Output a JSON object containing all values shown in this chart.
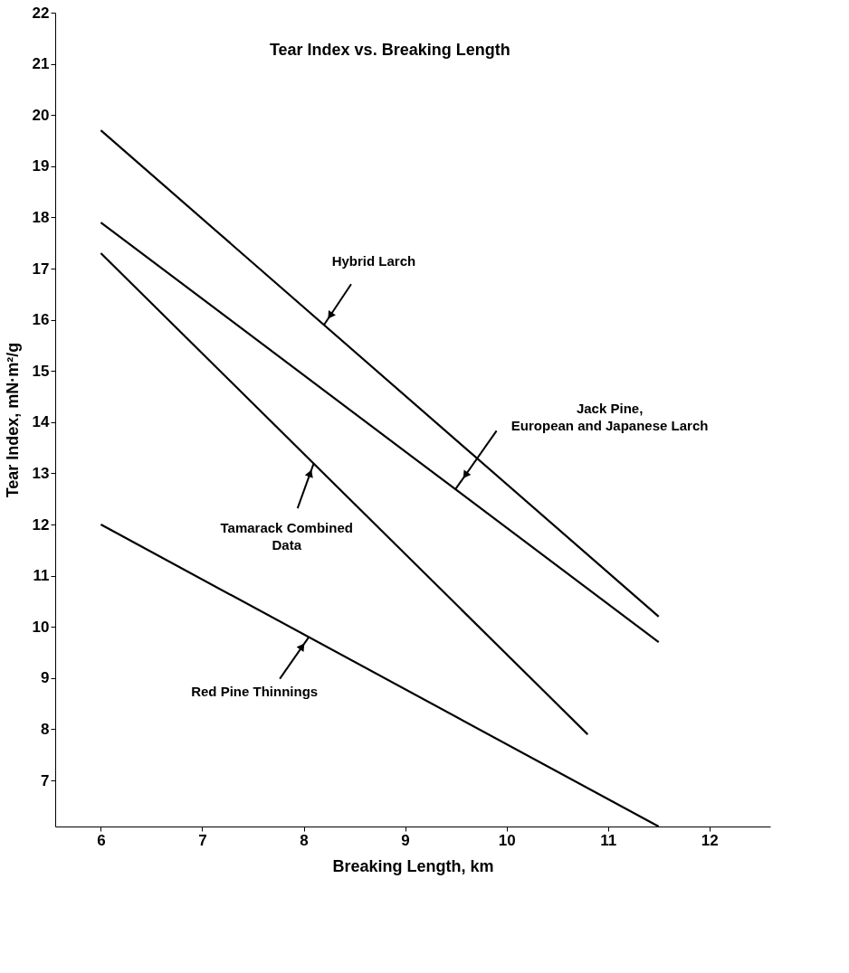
{
  "chart_data": {
    "type": "line",
    "title": "Tear Index vs. Breaking Length",
    "xlabel": "Breaking Length, km",
    "ylabel": "Tear Index, mN·m²/g",
    "xlim": [
      5.55,
      12.6
    ],
    "xticks": [
      6,
      7,
      8,
      9,
      10,
      11,
      12
    ],
    "ylim": [
      6.1,
      22
    ],
    "yticks": [
      7,
      8,
      9,
      10,
      11,
      12,
      13,
      14,
      15,
      16,
      17,
      18,
      19,
      20,
      21,
      22
    ],
    "grid": false,
    "legend": false,
    "marker": "none",
    "line_style": "solid",
    "series": [
      {
        "color": "#000000",
        "x": [
          6,
          11.5
        ],
        "values": [
          19.7,
          10.2
        ]
      },
      {
        "color": "#000000",
        "x": [
          6,
          11.5
        ],
        "values": [
          17.9,
          9.7
        ]
      },
      {
        "color": "#000000",
        "x": [
          6,
          10.8
        ],
        "values": [
          17.3,
          7.9
        ]
      },
      {
        "color": "#000000",
        "x": [
          6,
          11.5
        ],
        "values": [
          12.0,
          6.1
        ]
      }
    ],
    "annotations": [
      {
        "text": "Hybrid Larch",
        "x": 8.2,
        "y": 15.9
      },
      {
        "text": "Jack Pine,\nEuropean and Japanese Larch",
        "x": 9.5,
        "y": 12.7
      },
      {
        "text": "Tamarack Combined\nData",
        "x": 8.1,
        "y": 13.2
      },
      {
        "text": "Red Pine Thinnings",
        "x": 8.05,
        "y": 9.8
      }
    ]
  }
}
